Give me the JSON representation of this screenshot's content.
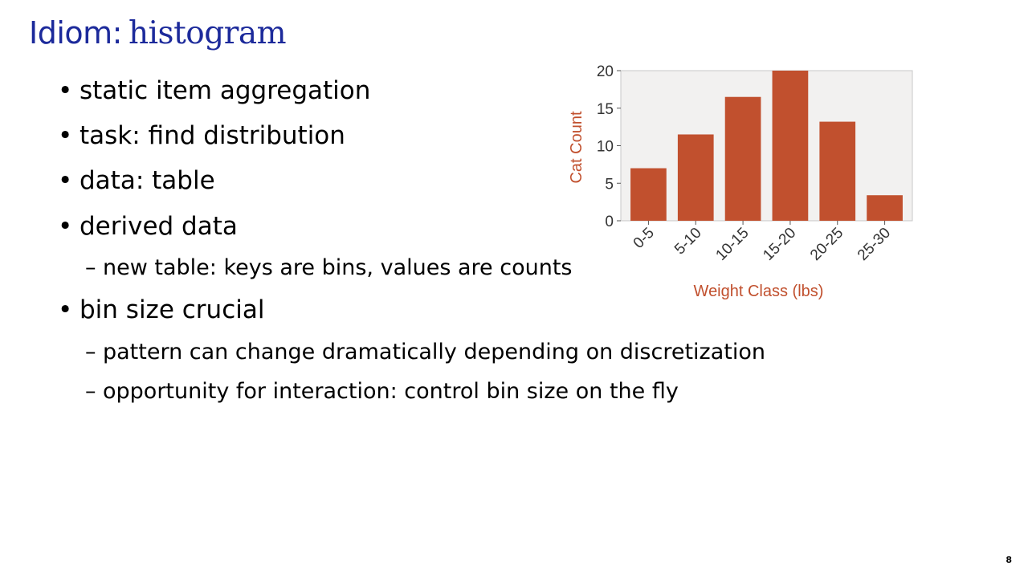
{
  "slide": {
    "title_prefix": "Idiom:",
    "title_word": "histogram",
    "page_number": "8"
  },
  "bullets": [
    {
      "level": 1,
      "text": "static item aggregation"
    },
    {
      "level": 1,
      "text": "task: find distribution"
    },
    {
      "level": 1,
      "text": "data: table"
    },
    {
      "level": 1,
      "text": "derived data"
    },
    {
      "level": 2,
      "text": "new table: keys are bins, values are counts"
    },
    {
      "level": 1,
      "text": "bin size crucial"
    },
    {
      "level": 2,
      "text": "pattern can change dramatically depending on discretization"
    },
    {
      "level": 2,
      "text": "opportunity for interaction: control bin size on the fly"
    }
  ],
  "markers": {
    "level1": "•",
    "level2": "–"
  },
  "chart_data": {
    "type": "bar",
    "title": "",
    "xlabel": "Weight Class (lbs)",
    "ylabel": "Cat Count",
    "categories": [
      "0-5",
      "5-10",
      "10-15",
      "15-20",
      "20-25",
      "25-30"
    ],
    "values": [
      7,
      11.5,
      16.5,
      20,
      13.2,
      3.4
    ],
    "ylim": [
      0,
      20
    ],
    "yticks": [
      0,
      5,
      10,
      15,
      20
    ],
    "grid": false,
    "colors": {
      "bar": "#c1502e",
      "axis_label": "#c1502e",
      "plot_background": "#f2f1f0",
      "frame": "#c8c8c8",
      "tick_text": "#333333"
    }
  }
}
